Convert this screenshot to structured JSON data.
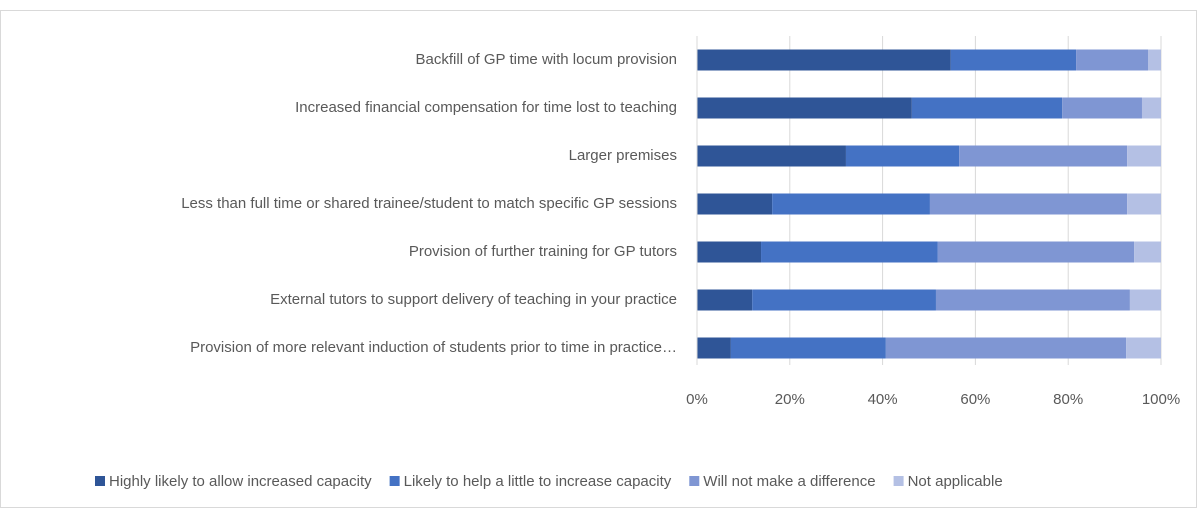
{
  "chart_data": {
    "type": "stacked-barh",
    "categories": [
      "Backfill of GP time with locum provision",
      "Increased financial compensation for time lost to teaching",
      "Larger premises",
      "Less than full time or shared trainee/student to match specific GP sessions",
      "Provision of further training for GP tutors",
      "External tutors to support delivery of teaching in your practice",
      "Provision of more relevant induction of students prior to time in practice…"
    ],
    "series": [
      {
        "name": "Highly likely to allow increased capacity",
        "color": "#2f5597",
        "values": [
          54.7,
          46.3,
          32.1,
          16.2,
          13.8,
          11.9,
          7.3
        ]
      },
      {
        "name": "Likely to help a little to increase capacity",
        "color": "#4472c4",
        "values": [
          27.0,
          32.4,
          24.4,
          34.0,
          38.1,
          39.6,
          33.4
        ]
      },
      {
        "name": "Will not make a difference",
        "color": "#7f96d3",
        "values": [
          15.5,
          17.2,
          36.2,
          42.5,
          42.3,
          41.8,
          51.8
        ]
      },
      {
        "name": "Not applicable",
        "color": "#b4c0e4",
        "values": [
          2.8,
          4.1,
          7.3,
          7.3,
          5.8,
          6.7,
          7.5
        ]
      }
    ],
    "xlim": [
      0,
      100
    ],
    "xticks": [
      {
        "value": 0,
        "label": "0%"
      },
      {
        "value": 20,
        "label": "20%"
      },
      {
        "value": 40,
        "label": "40%"
      },
      {
        "value": 60,
        "label": "60%"
      },
      {
        "value": 80,
        "label": "80%"
      },
      {
        "value": 100,
        "label": "100%"
      }
    ],
    "grid": true,
    "legend": "bottom"
  }
}
